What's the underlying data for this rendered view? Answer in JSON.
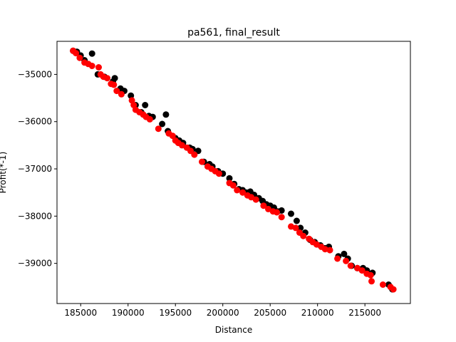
{
  "chart_data": {
    "type": "scatter",
    "title": "pa561, final_result",
    "xlabel": "Distance",
    "ylabel": "Profit(*-1)",
    "xlim": [
      182500,
      219800
    ],
    "ylim": [
      -39850,
      -34300
    ],
    "xticks": [
      185000,
      190000,
      195000,
      200000,
      205000,
      210000,
      215000
    ],
    "yticks": [
      -35000,
      -36000,
      -37000,
      -38000,
      -39000
    ],
    "xtick_labels": [
      "185000",
      "190000",
      "195000",
      "200000",
      "205000",
      "210000",
      "215000"
    ],
    "ytick_labels": [
      "−35000",
      "−36000",
      "−37000",
      "−38000",
      "−39000"
    ],
    "grid": false,
    "series": [
      {
        "color": "#000000",
        "points": [
          [
            184200,
            -34500
          ],
          [
            184600,
            -34520
          ],
          [
            185000,
            -34600
          ],
          [
            185400,
            -34700
          ],
          [
            186200,
            -34560
          ],
          [
            186800,
            -35000
          ],
          [
            187500,
            -35050
          ],
          [
            188400,
            -35150
          ],
          [
            188600,
            -35080
          ],
          [
            189200,
            -35300
          ],
          [
            189600,
            -35350
          ],
          [
            190300,
            -35450
          ],
          [
            190800,
            -35650
          ],
          [
            191400,
            -35800
          ],
          [
            191800,
            -35650
          ],
          [
            192200,
            -35880
          ],
          [
            192600,
            -35900
          ],
          [
            193600,
            -36050
          ],
          [
            194000,
            -35850
          ],
          [
            194200,
            -36200
          ],
          [
            195000,
            -36350
          ],
          [
            195400,
            -36400
          ],
          [
            195800,
            -36450
          ],
          [
            196500,
            -36550
          ],
          [
            196800,
            -36580
          ],
          [
            197400,
            -36620
          ],
          [
            198000,
            -36850
          ],
          [
            198600,
            -36900
          ],
          [
            198900,
            -36950
          ],
          [
            199500,
            -37050
          ],
          [
            200000,
            -37100
          ],
          [
            200700,
            -37200
          ],
          [
            201200,
            -37320
          ],
          [
            201700,
            -37430
          ],
          [
            202100,
            -37450
          ],
          [
            202500,
            -37500
          ],
          [
            202900,
            -37480
          ],
          [
            203300,
            -37550
          ],
          [
            203800,
            -37620
          ],
          [
            204200,
            -37680
          ],
          [
            204600,
            -37750
          ],
          [
            205000,
            -37780
          ],
          [
            205400,
            -37820
          ],
          [
            205800,
            -37900
          ],
          [
            206200,
            -37880
          ],
          [
            207200,
            -37950
          ],
          [
            207800,
            -38100
          ],
          [
            208200,
            -38250
          ],
          [
            208700,
            -38350
          ],
          [
            209200,
            -38500
          ],
          [
            209700,
            -38550
          ],
          [
            210300,
            -38620
          ],
          [
            210800,
            -38680
          ],
          [
            211200,
            -38650
          ],
          [
            212200,
            -38850
          ],
          [
            212800,
            -38800
          ],
          [
            213200,
            -38900
          ],
          [
            213600,
            -39050
          ],
          [
            214200,
            -39100
          ],
          [
            214800,
            -39100
          ],
          [
            215200,
            -39150
          ],
          [
            215800,
            -39200
          ],
          [
            217500,
            -39450
          ],
          [
            217900,
            -39550
          ]
        ]
      },
      {
        "color": "#ff0000",
        "points": [
          [
            184200,
            -34500
          ],
          [
            184500,
            -34550
          ],
          [
            184900,
            -34650
          ],
          [
            185400,
            -34750
          ],
          [
            185800,
            -34780
          ],
          [
            186200,
            -34820
          ],
          [
            186900,
            -34850
          ],
          [
            187100,
            -35000
          ],
          [
            187400,
            -35050
          ],
          [
            187800,
            -35080
          ],
          [
            188200,
            -35200
          ],
          [
            188500,
            -35220
          ],
          [
            188800,
            -35350
          ],
          [
            189300,
            -35420
          ],
          [
            190400,
            -35550
          ],
          [
            190600,
            -35650
          ],
          [
            190800,
            -35750
          ],
          [
            191200,
            -35800
          ],
          [
            191600,
            -35850
          ],
          [
            191900,
            -35900
          ],
          [
            192300,
            -35950
          ],
          [
            193200,
            -36150
          ],
          [
            194300,
            -36250
          ],
          [
            194700,
            -36300
          ],
          [
            195000,
            -36400
          ],
          [
            195300,
            -36450
          ],
          [
            195700,
            -36500
          ],
          [
            196200,
            -36550
          ],
          [
            196600,
            -36620
          ],
          [
            197000,
            -36700
          ],
          [
            197800,
            -36850
          ],
          [
            198400,
            -36950
          ],
          [
            198800,
            -37000
          ],
          [
            199200,
            -37050
          ],
          [
            199600,
            -37100
          ],
          [
            200700,
            -37300
          ],
          [
            201100,
            -37350
          ],
          [
            201500,
            -37450
          ],
          [
            202100,
            -37500
          ],
          [
            202600,
            -37560
          ],
          [
            203000,
            -37600
          ],
          [
            203500,
            -37650
          ],
          [
            204300,
            -37780
          ],
          [
            204800,
            -37850
          ],
          [
            205300,
            -37900
          ],
          [
            205700,
            -37920
          ],
          [
            206200,
            -38020
          ],
          [
            207200,
            -38220
          ],
          [
            207700,
            -38250
          ],
          [
            208100,
            -38350
          ],
          [
            208500,
            -38420
          ],
          [
            209100,
            -38480
          ],
          [
            209500,
            -38550
          ],
          [
            209900,
            -38600
          ],
          [
            210400,
            -38650
          ],
          [
            210800,
            -38700
          ],
          [
            211300,
            -38720
          ],
          [
            212100,
            -38900
          ],
          [
            213000,
            -38950
          ],
          [
            213500,
            -39050
          ],
          [
            214200,
            -39100
          ],
          [
            214700,
            -39150
          ],
          [
            215200,
            -39220
          ],
          [
            215600,
            -39250
          ],
          [
            215700,
            -39380
          ],
          [
            216900,
            -39450
          ],
          [
            217700,
            -39500
          ],
          [
            218000,
            -39550
          ]
        ]
      }
    ]
  }
}
